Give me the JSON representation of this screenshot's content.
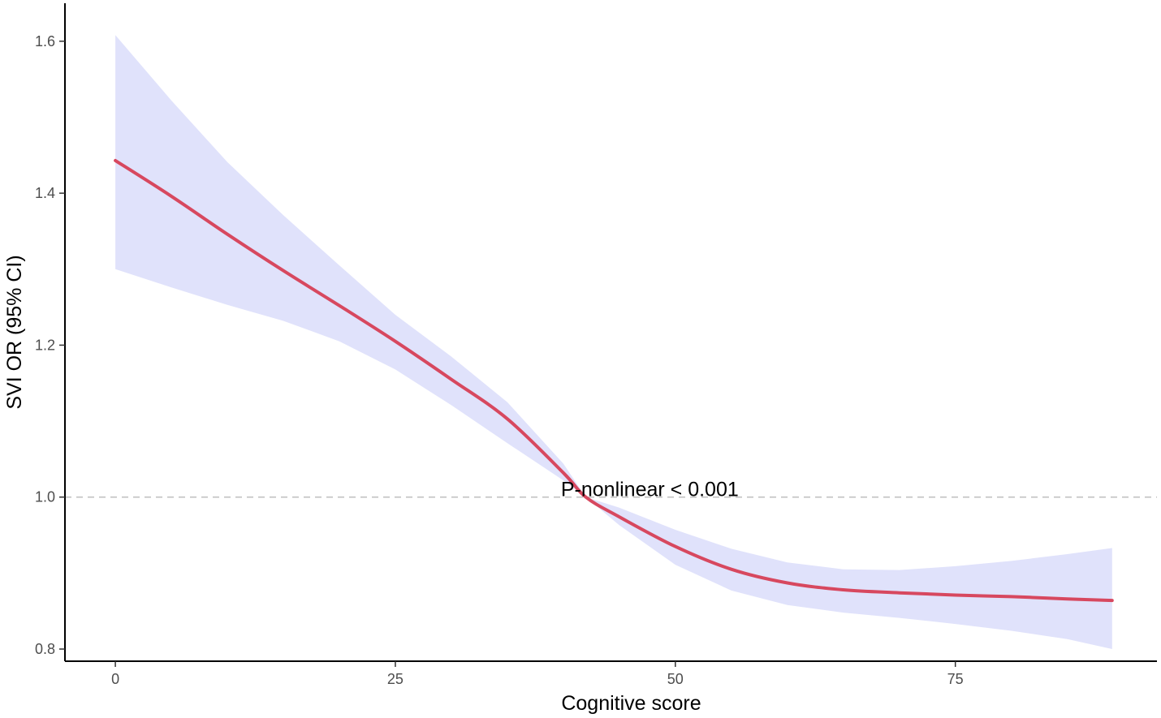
{
  "chart_data": {
    "type": "line",
    "title": "",
    "xlabel": "Cognitive score",
    "ylabel": "SVI OR (95% CI)",
    "xlim": [
      -4.5,
      93
    ],
    "ylim": [
      0.784,
      1.65
    ],
    "x_ticks": [
      0,
      25,
      50,
      75
    ],
    "x_tick_labels": [
      "0",
      "25",
      "50",
      "75"
    ],
    "y_ticks": [
      0.8,
      1.0,
      1.2,
      1.4,
      1.6
    ],
    "y_tick_labels": [
      "0.8",
      "1.0",
      "1.2",
      "1.4",
      "1.6"
    ],
    "grid": false,
    "reference_line": {
      "y": 1.0,
      "style": "dashed",
      "color": "#bfbfbf"
    },
    "annotation": {
      "text": "P-nonlinear < 0.001",
      "x": 40,
      "y": 1.01
    },
    "series": [
      {
        "color": "#d7485f",
        "band_color": "#e0e2fb",
        "x": [
          0,
          5,
          10,
          15,
          20,
          25,
          30,
          35,
          40,
          42,
          45,
          50,
          55,
          60,
          65,
          70,
          75,
          80,
          85,
          89
        ],
        "y": [
          1.443,
          1.396,
          1.346,
          1.298,
          1.252,
          1.205,
          1.155,
          1.103,
          1.032,
          1.0,
          0.974,
          0.935,
          0.905,
          0.887,
          0.878,
          0.874,
          0.871,
          0.869,
          0.866,
          0.864
        ],
        "lower": [
          1.3,
          1.276,
          1.253,
          1.232,
          1.205,
          1.168,
          1.121,
          1.071,
          1.022,
          1.0,
          0.963,
          0.911,
          0.877,
          0.858,
          0.848,
          0.841,
          0.833,
          0.824,
          0.813,
          0.8
        ],
        "upper": [
          1.608,
          1.522,
          1.441,
          1.371,
          1.305,
          1.24,
          1.185,
          1.125,
          1.044,
          1.0,
          0.986,
          0.957,
          0.932,
          0.914,
          0.905,
          0.904,
          0.909,
          0.916,
          0.925,
          0.933
        ]
      }
    ]
  }
}
